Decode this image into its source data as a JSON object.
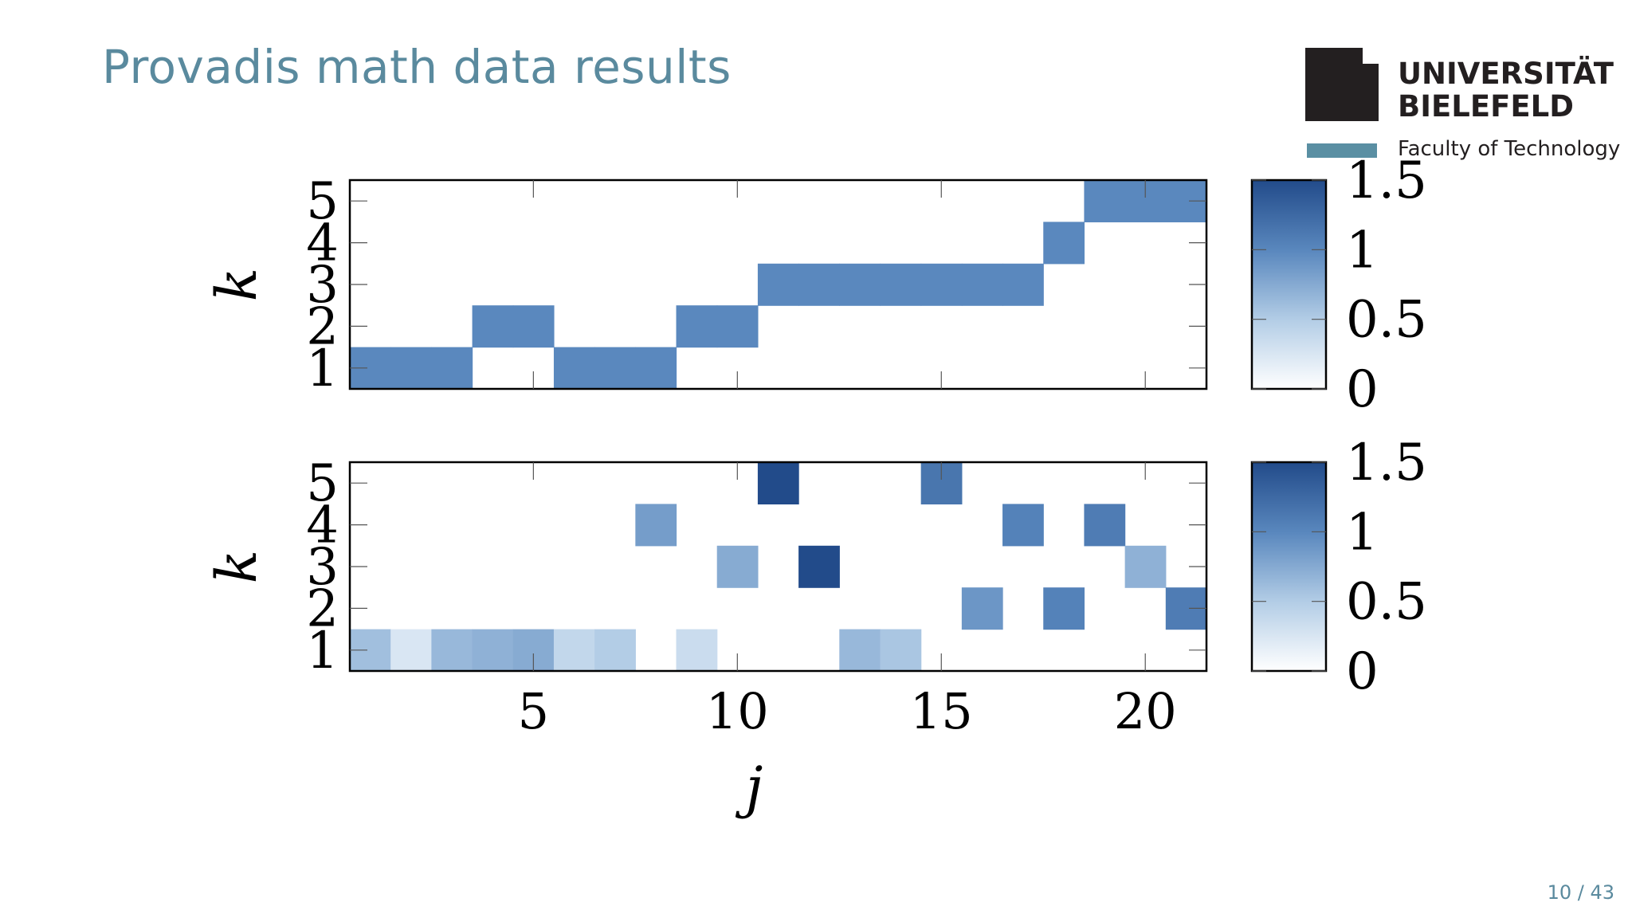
{
  "slide": {
    "title": "Provadis math data results",
    "page_number": "10 / 43"
  },
  "logo": {
    "line1": "UNIVERSITÄT",
    "line2": "BIELEFELD",
    "faculty": "Faculty of Technology",
    "mark_color": "#231f20",
    "bar_color": "#5a8fa3"
  },
  "chart_data": [
    {
      "type": "heatmap",
      "title": "",
      "xlabel": "j",
      "ylabel": "k",
      "x_range": [
        1,
        21
      ],
      "y_range": [
        1,
        5
      ],
      "x_ticks": [
        5,
        10,
        15,
        20
      ],
      "y_ticks": [
        1,
        2,
        3,
        4,
        5
      ],
      "show_x_tick_labels": false,
      "colorbar": {
        "min": 0,
        "max": 1.5,
        "ticks": [
          0,
          0.5,
          1,
          1.5
        ],
        "tick_labels": [
          "0",
          "0.5",
          "1",
          "1.5"
        ]
      },
      "cells": [
        {
          "j": 1,
          "k": 1,
          "v": 1.0
        },
        {
          "j": 2,
          "k": 1,
          "v": 1.0
        },
        {
          "j": 3,
          "k": 1,
          "v": 1.0
        },
        {
          "j": 4,
          "k": 2,
          "v": 1.0
        },
        {
          "j": 5,
          "k": 2,
          "v": 1.0
        },
        {
          "j": 6,
          "k": 1,
          "v": 1.0
        },
        {
          "j": 7,
          "k": 1,
          "v": 1.0
        },
        {
          "j": 8,
          "k": 1,
          "v": 1.0
        },
        {
          "j": 9,
          "k": 2,
          "v": 1.0
        },
        {
          "j": 10,
          "k": 2,
          "v": 1.0
        },
        {
          "j": 11,
          "k": 3,
          "v": 1.0
        },
        {
          "j": 12,
          "k": 3,
          "v": 1.0
        },
        {
          "j": 13,
          "k": 3,
          "v": 1.0
        },
        {
          "j": 14,
          "k": 3,
          "v": 1.0
        },
        {
          "j": 15,
          "k": 3,
          "v": 1.0
        },
        {
          "j": 16,
          "k": 3,
          "v": 1.0
        },
        {
          "j": 17,
          "k": 3,
          "v": 1.0
        },
        {
          "j": 18,
          "k": 4,
          "v": 1.0
        },
        {
          "j": 19,
          "k": 5,
          "v": 1.0
        },
        {
          "j": 20,
          "k": 5,
          "v": 1.0
        },
        {
          "j": 21,
          "k": 5,
          "v": 1.0
        }
      ]
    },
    {
      "type": "heatmap",
      "title": "",
      "xlabel": "j",
      "ylabel": "k",
      "x_range": [
        1,
        21
      ],
      "y_range": [
        1,
        5
      ],
      "x_ticks": [
        5,
        10,
        15,
        20
      ],
      "x_tick_labels": [
        "5",
        "10",
        "15",
        "20"
      ],
      "y_ticks": [
        1,
        2,
        3,
        4,
        5
      ],
      "show_x_tick_labels": true,
      "colorbar": {
        "min": 0,
        "max": 1.5,
        "ticks": [
          0,
          0.5,
          1,
          1.5
        ],
        "tick_labels": [
          "0",
          "0.5",
          "1",
          "1.5"
        ]
      },
      "cells": [
        {
          "j": 1,
          "k": 1,
          "v": 0.6
        },
        {
          "j": 2,
          "k": 1,
          "v": 0.25
        },
        {
          "j": 3,
          "k": 1,
          "v": 0.65
        },
        {
          "j": 4,
          "k": 1,
          "v": 0.7
        },
        {
          "j": 5,
          "k": 1,
          "v": 0.75
        },
        {
          "j": 6,
          "k": 1,
          "v": 0.4
        },
        {
          "j": 7,
          "k": 1,
          "v": 0.5
        },
        {
          "j": 9,
          "k": 1,
          "v": 0.35
        },
        {
          "j": 13,
          "k": 1,
          "v": 0.65
        },
        {
          "j": 14,
          "k": 1,
          "v": 0.55
        },
        {
          "j": 8,
          "k": 4,
          "v": 0.85
        },
        {
          "j": 10,
          "k": 3,
          "v": 0.75
        },
        {
          "j": 11,
          "k": 5,
          "v": 1.5
        },
        {
          "j": 12,
          "k": 3,
          "v": 1.5
        },
        {
          "j": 15,
          "k": 5,
          "v": 1.15
        },
        {
          "j": 16,
          "k": 2,
          "v": 0.9
        },
        {
          "j": 17,
          "k": 4,
          "v": 1.05
        },
        {
          "j": 18,
          "k": 2,
          "v": 1.05
        },
        {
          "j": 19,
          "k": 4,
          "v": 1.1
        },
        {
          "j": 20,
          "k": 3,
          "v": 0.7
        },
        {
          "j": 21,
          "k": 2,
          "v": 1.1
        }
      ]
    }
  ]
}
